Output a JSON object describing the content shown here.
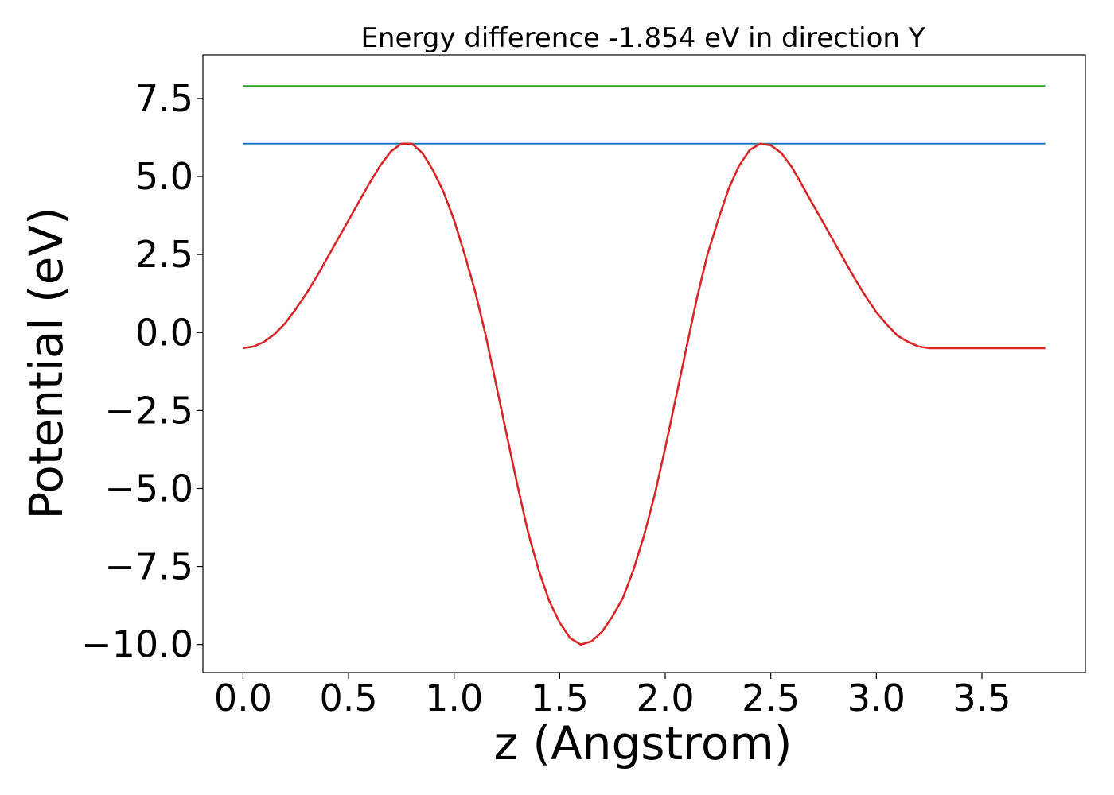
{
  "chart_data": {
    "type": "line",
    "title": "Energy difference -1.854 eV in direction Y",
    "xlabel": "z (Angstrom)",
    "ylabel": "Potential (eV)",
    "xlim": [
      -0.19,
      3.99
    ],
    "ylim": [
      -10.9,
      8.9
    ],
    "x_ticks": [
      0.0,
      0.5,
      1.0,
      1.5,
      2.0,
      2.5,
      3.0,
      3.5
    ],
    "x_tick_labels": [
      "0.0",
      "0.5",
      "1.0",
      "1.5",
      "2.0",
      "2.5",
      "3.0",
      "3.5"
    ],
    "y_ticks": [
      -10.0,
      -7.5,
      -5.0,
      -2.5,
      0.0,
      2.5,
      5.0,
      7.5
    ],
    "y_tick_labels": [
      "−10.0",
      "−7.5",
      "−5.0",
      "−2.5",
      "0.0",
      "2.5",
      "5.0",
      "7.5"
    ],
    "grid": false,
    "legend": "none",
    "series": [
      {
        "color": "#2ca02c",
        "x": [
          0.0,
          3.8
        ],
        "y": [
          7.9,
          7.9
        ]
      },
      {
        "color": "#1f77b4",
        "x": [
          0.0,
          3.8
        ],
        "y": [
          6.05,
          6.05
        ]
      },
      {
        "color": "#d62728",
        "x": [
          0.0,
          0.05,
          0.1,
          0.15,
          0.2,
          0.25,
          0.3,
          0.35,
          0.4,
          0.45,
          0.5,
          0.55,
          0.6,
          0.65,
          0.7,
          0.75,
          0.8,
          0.85,
          0.9,
          0.95,
          1.0,
          1.05,
          1.1,
          1.15,
          1.2,
          1.25,
          1.3,
          1.35,
          1.4,
          1.45,
          1.5,
          1.55,
          1.6,
          1.65,
          1.7,
          1.75,
          1.8,
          1.85,
          1.9,
          1.95,
          2.0,
          2.05,
          2.1,
          2.15,
          2.2,
          2.25,
          2.3,
          2.35,
          2.4,
          2.45,
          2.5,
          2.55,
          2.6,
          2.65,
          2.7,
          2.75,
          2.8,
          2.85,
          2.9,
          2.95,
          3.0,
          3.05,
          3.1,
          3.15,
          3.2,
          3.25,
          3.3,
          3.35,
          3.4,
          3.45,
          3.5,
          3.55,
          3.6,
          3.65,
          3.7,
          3.75,
          3.8
        ],
        "y": [
          -0.5,
          -0.45,
          -0.3,
          -0.05,
          0.3,
          0.75,
          1.25,
          1.8,
          2.4,
          3.0,
          3.6,
          4.2,
          4.8,
          5.35,
          5.8,
          6.05,
          6.05,
          5.75,
          5.2,
          4.5,
          3.6,
          2.5,
          1.3,
          -0.1,
          -1.7,
          -3.3,
          -4.9,
          -6.4,
          -7.6,
          -8.6,
          -9.3,
          -9.8,
          -10.0,
          -9.9,
          -9.6,
          -9.1,
          -8.5,
          -7.6,
          -6.5,
          -5.2,
          -3.7,
          -2.1,
          -0.5,
          1.1,
          2.5,
          3.6,
          4.6,
          5.35,
          5.85,
          6.05,
          6.0,
          5.75,
          5.3,
          4.7,
          4.1,
          3.5,
          2.9,
          2.3,
          1.7,
          1.15,
          0.65,
          0.25,
          -0.1,
          -0.3,
          -0.45,
          -0.5,
          -0.5,
          -0.5,
          -0.5,
          -0.5,
          -0.5,
          -0.5,
          -0.5,
          -0.5,
          -0.5,
          -0.5,
          -0.5
        ]
      }
    ]
  }
}
